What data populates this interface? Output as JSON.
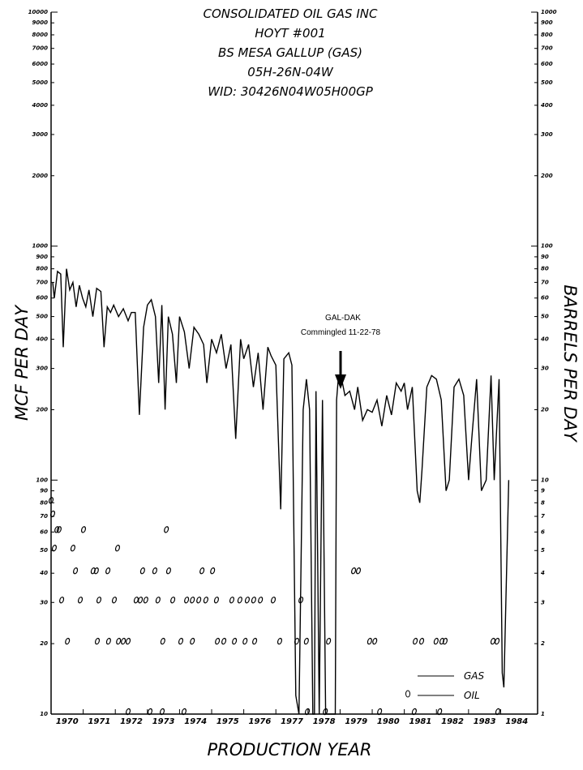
{
  "chart_data": {
    "type": "line",
    "title_lines": [
      "CONSOLIDATED OIL GAS INC",
      "HOYT #001",
      "BS MESA GALLUP (GAS)",
      "05H-26N-04W",
      "WID:  30426N04W05H00GP"
    ],
    "xlabel": "PRODUCTION YEAR",
    "ylabel": "MCF PER DAY",
    "y2label": "BARRELS PER DAY",
    "annotations": [
      "GAL-DAK",
      "Commingled 11-22-78"
    ],
    "log_scale": true,
    "grid": false,
    "legend": "lower right",
    "xlim": [
      1970,
      1985.15
    ],
    "xticks": [
      1970,
      1971,
      1972,
      1973,
      1974,
      1975,
      1976,
      1977,
      1978,
      1979,
      1980,
      1981,
      1982,
      1983,
      1984
    ],
    "ylim": [
      10,
      10000
    ],
    "yticks": [
      10,
      20,
      30,
      40,
      50,
      60,
      70,
      80,
      90,
      100,
      200,
      300,
      400,
      500,
      600,
      700,
      800,
      900,
      1000,
      2000,
      3000,
      4000,
      5000,
      6000,
      7000,
      8000,
      9000,
      10000
    ],
    "y2lim": [
      1,
      1000
    ],
    "y2ticks": [
      1,
      2,
      3,
      4,
      5,
      6,
      7,
      8,
      9,
      10,
      20,
      30,
      40,
      50,
      60,
      70,
      80,
      90,
      100,
      200,
      300,
      400,
      500,
      600,
      700,
      800,
      900,
      1000
    ],
    "series": [
      {
        "name": "GAS",
        "color": "#000000",
        "style": "line",
        "x": [
          1970.05,
          1970.1,
          1970.2,
          1970.3,
          1970.38,
          1970.48,
          1970.58,
          1970.68,
          1970.78,
          1970.88,
          1970.98,
          1971.08,
          1971.18,
          1971.3,
          1971.42,
          1971.55,
          1971.65,
          1971.75,
          1971.85,
          1971.95,
          1972.1,
          1972.25,
          1972.4,
          1972.5,
          1972.62,
          1972.75,
          1972.88,
          1973.0,
          1973.12,
          1973.25,
          1973.35,
          1973.45,
          1973.55,
          1973.65,
          1973.78,
          1973.9,
          1974.0,
          1974.15,
          1974.3,
          1974.45,
          1974.6,
          1974.75,
          1974.85,
          1975.0,
          1975.15,
          1975.3,
          1975.45,
          1975.6,
          1975.75,
          1975.9,
          1976.0,
          1976.15,
          1976.3,
          1976.45,
          1976.6,
          1976.75,
          1976.85,
          1977.0,
          1977.15,
          1977.25,
          1977.4,
          1977.5,
          1977.62,
          1977.72,
          1977.85,
          1977.95,
          1978.05,
          1978.15,
          1978.2,
          1978.25,
          1978.35,
          1978.45,
          1978.55,
          1978.6,
          1978.85,
          1978.89,
          1978.95,
          1979.05,
          1979.15,
          1979.3,
          1979.45,
          1979.55,
          1979.7,
          1979.85,
          1980.0,
          1980.15,
          1980.3,
          1980.45,
          1980.6,
          1980.75,
          1980.9,
          1981.0,
          1981.1,
          1981.25,
          1981.4,
          1981.48,
          1981.55,
          1981.7,
          1981.85,
          1982.0,
          1982.15,
          1982.3,
          1982.4,
          1982.55,
          1982.7,
          1982.85,
          1983.0,
          1983.1,
          1983.25,
          1983.4,
          1983.55,
          1983.7,
          1983.8,
          1983.95,
          1984.05,
          1984.1,
          1984.25
        ],
        "values": [
          700,
          600,
          780,
          760,
          370,
          800,
          650,
          700,
          550,
          680,
          600,
          550,
          650,
          500,
          660,
          640,
          370,
          550,
          520,
          560,
          500,
          540,
          480,
          520,
          520,
          190,
          450,
          560,
          590,
          500,
          260,
          560,
          200,
          500,
          420,
          260,
          500,
          430,
          300,
          450,
          420,
          380,
          260,
          400,
          350,
          420,
          300,
          380,
          150,
          400,
          330,
          380,
          250,
          350,
          200,
          370,
          340,
          310,
          75,
          330,
          350,
          310,
          12,
          10,
          200,
          270,
          200,
          10,
          10,
          240,
          10,
          220,
          10,
          10,
          10,
          220,
          280,
          270,
          230,
          240,
          200,
          250,
          180,
          200,
          195,
          220,
          170,
          230,
          190,
          260,
          240,
          260,
          200,
          250,
          90,
          80,
          110,
          250,
          280,
          270,
          220,
          90,
          100,
          250,
          270,
          230,
          100,
          150,
          270,
          90,
          100,
          280,
          100,
          270,
          15,
          13,
          100
        ]
      },
      {
        "name": "OIL",
        "color": "#000000",
        "style": "markers",
        "axis": "y2",
        "x": [
          1970.0,
          1970.05,
          1970.18,
          1970.25,
          1971.01,
          1973.59,
          1970.1,
          1970.68,
          1972.07,
          1970.76,
          1971.31,
          1971.41,
          1971.77,
          1972.85,
          1973.23,
          1973.66,
          1974.7,
          1975.03,
          1979.42,
          1979.57,
          1970.33,
          1970.91,
          1971.49,
          1971.97,
          1972.65,
          1972.78,
          1972.95,
          1973.33,
          1973.79,
          1974.22,
          1974.4,
          1974.6,
          1974.82,
          1975.15,
          1975.63,
          1975.88,
          1976.11,
          1976.31,
          1976.52,
          1976.92,
          1977.78,
          1970.51,
          1971.44,
          1971.79,
          1972.1,
          1972.25,
          1972.4,
          1973.48,
          1974.04,
          1974.4,
          1975.18,
          1975.38,
          1975.71,
          1976.04,
          1976.34,
          1977.12,
          1977.65,
          1977.95,
          1978.64,
          1979.92,
          1980.08,
          1981.34,
          1981.54,
          1981.99,
          1982.17,
          1982.27,
          1983.76,
          1983.89,
          1972.4,
          1973.08,
          1973.46,
          1974.14,
          1977.98,
          1978.54,
          1980.23,
          1981.31,
          1982.1,
          1983.91
        ],
        "values": [
          8,
          7,
          6,
          6,
          6,
          6,
          5,
          5,
          5,
          4,
          4,
          4,
          4,
          4,
          4,
          4,
          4,
          4,
          4,
          4,
          3,
          3,
          3,
          3,
          3,
          3,
          3,
          3,
          3,
          3,
          3,
          3,
          3,
          3,
          3,
          3,
          3,
          3,
          3,
          3,
          3,
          2,
          2,
          2,
          2,
          2,
          2,
          2,
          2,
          2,
          2,
          2,
          2,
          2,
          2,
          2,
          2,
          2,
          2,
          2,
          2,
          2,
          2,
          2,
          2,
          2,
          2,
          2,
          1,
          1,
          1,
          1,
          1,
          1,
          1,
          1,
          1,
          1
        ]
      }
    ]
  }
}
